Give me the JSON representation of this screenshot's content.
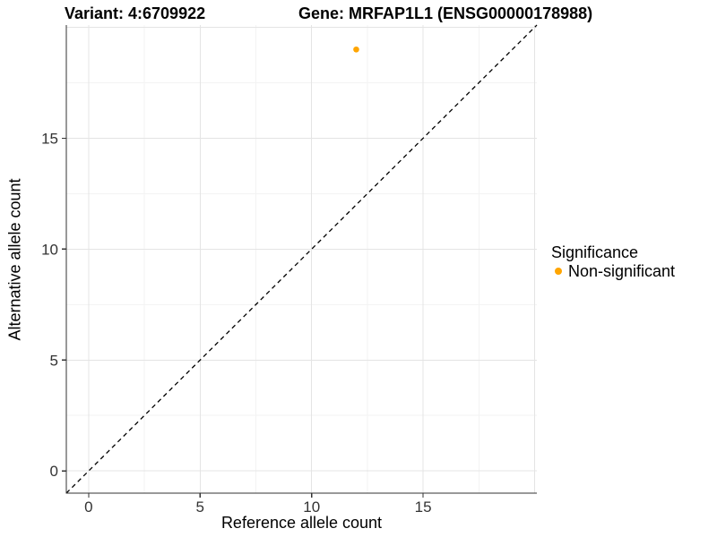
{
  "header": {
    "variant_title": "Variant: 4:6709922",
    "gene_title": "Gene: MRFAP1L1 (ENSG00000178988)"
  },
  "chart_data": {
    "type": "scatter",
    "xlabel": "Reference allele count",
    "ylabel": "Alternative allele count",
    "xlim": [
      -1,
      20.1
    ],
    "ylim": [
      -1,
      20.1
    ],
    "xticks": [
      0,
      5,
      10,
      15
    ],
    "yticks": [
      0,
      5,
      10,
      15
    ],
    "grid": true,
    "grid_major": [
      0,
      5,
      10,
      15,
      20
    ],
    "grid_minor": [
      2.5,
      7.5,
      12.5,
      17.5
    ],
    "identity_line": {
      "slope": 1,
      "intercept": 0,
      "linetype": "dashed",
      "color": "#000000"
    },
    "series": [
      {
        "name": "Non-significant",
        "color": "#FFA500",
        "points": [
          {
            "x": 12,
            "y": 19
          }
        ]
      }
    ],
    "legend": {
      "title": "Significance",
      "position": "right",
      "items": [
        {
          "label": "Non-significant",
          "color": "#FFA500"
        }
      ]
    },
    "style": {
      "axis_color": "#333333",
      "tick_label_color": "#333333",
      "grid_major_color": "#E4E4E4",
      "grid_minor_color": "#F3F3F3",
      "panel_background": "#FFFFFF"
    }
  }
}
